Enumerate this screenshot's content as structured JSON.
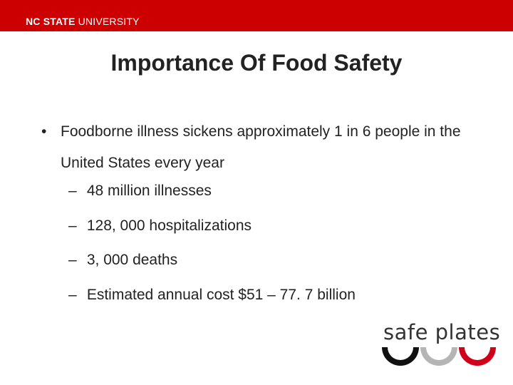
{
  "header": {
    "brand_bold": "NC STATE",
    "brand_light": " UNIVERSITY",
    "color": "#cc0000"
  },
  "slide": {
    "title": "Importance Of Food Safety",
    "bullet_marker": "•",
    "bullet_text": "Foodborne illness sickens approximately 1 in 6 people in the United States every year",
    "sub_marker": "–",
    "sub_items": [
      "48 million illnesses",
      "128, 000 hospitalizations",
      "3, 000 deaths",
      "Estimated annual cost $51 – 77. 7 billion"
    ]
  },
  "logo": {
    "text": "safe plates",
    "colors": [
      "#111111",
      "#b5b5b5",
      "#d0021b"
    ]
  }
}
